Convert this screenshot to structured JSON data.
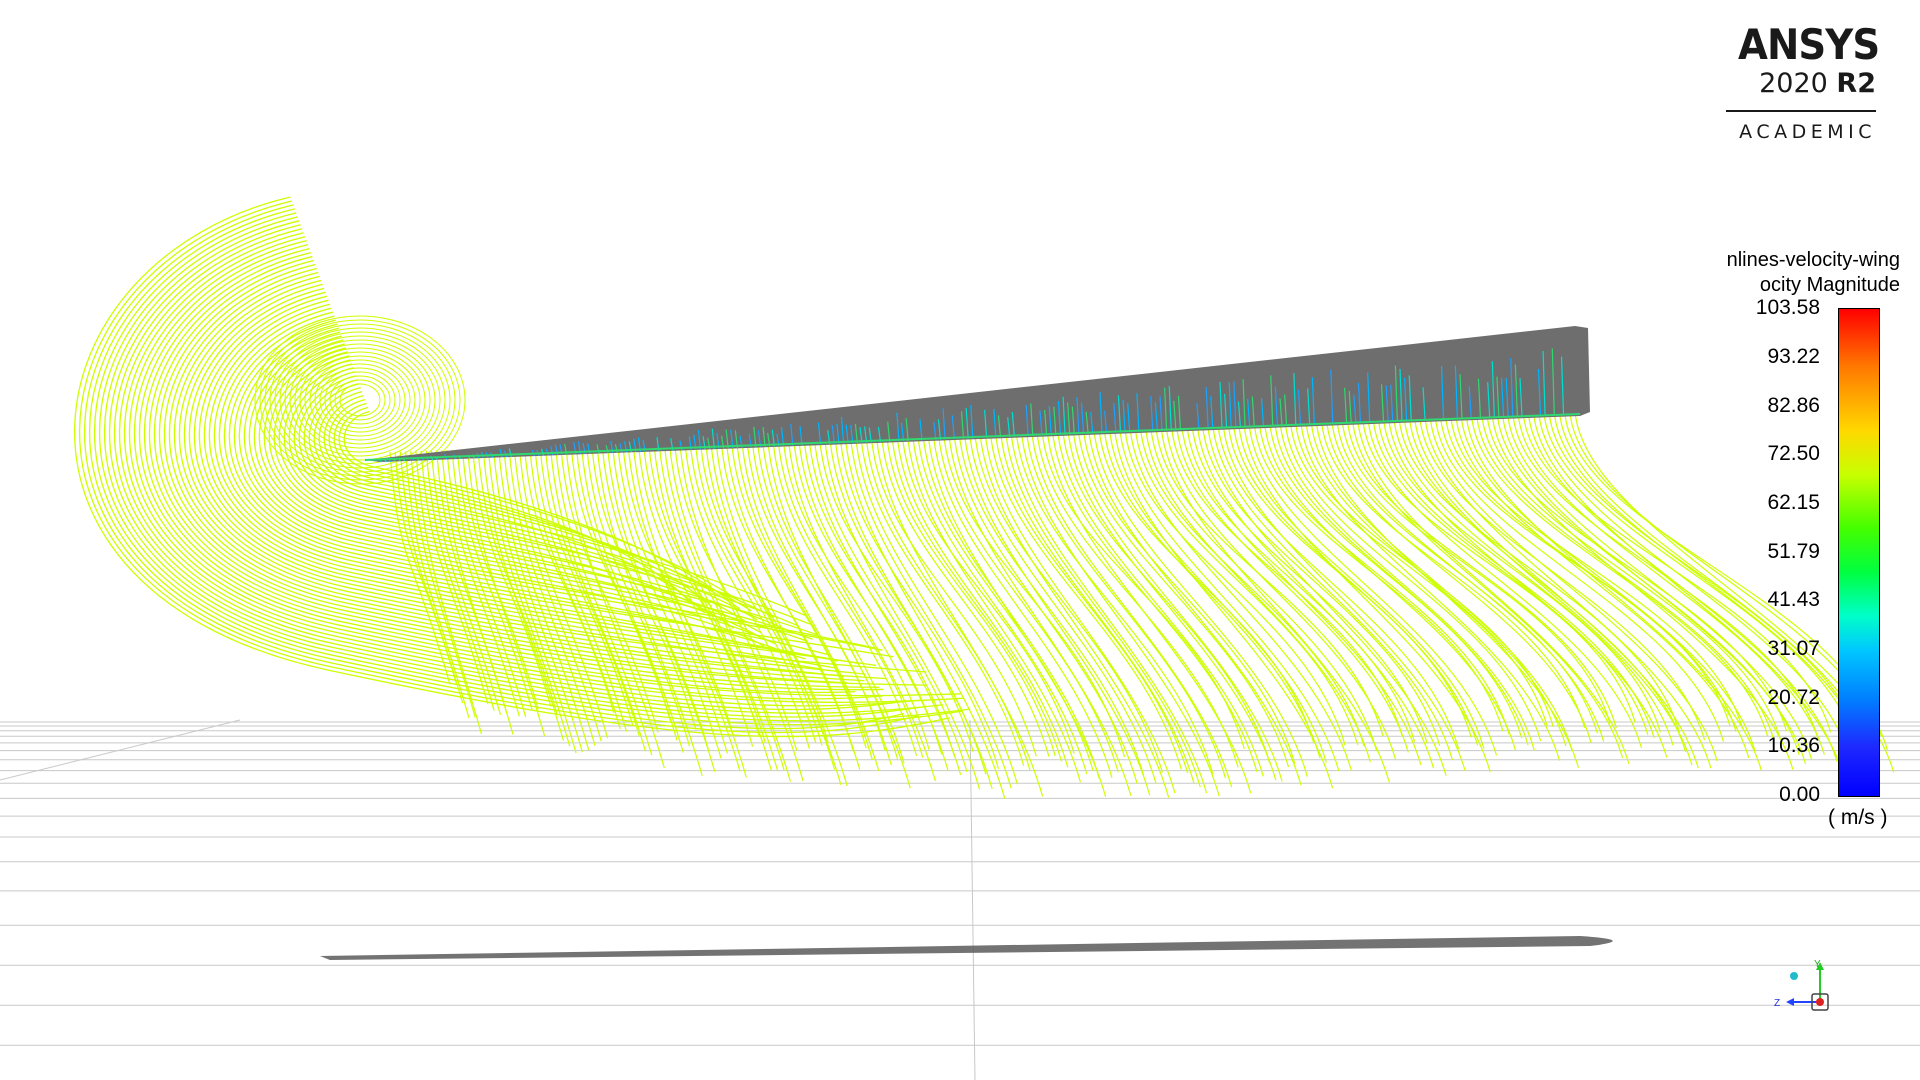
{
  "logo": {
    "brand": "ANSYS",
    "version_year": "2020",
    "version_release": "R2",
    "edition": "ACADEMIC"
  },
  "legend": {
    "title_line1": "nlines-velocity-wing",
    "title_line2": "ocity Magnitude",
    "labels": [
      "103.58",
      "93.22",
      "82.86",
      "72.50",
      "62.15",
      "51.79",
      "41.43",
      "31.07",
      "20.72",
      "10.36",
      "0.00"
    ],
    "unit": "( m/s )",
    "colormap": [
      "#ff0000",
      "#ff7a00",
      "#ffd800",
      "#c8ff00",
      "#44ff00",
      "#00ff40",
      "#00ffc8",
      "#00c8ff",
      "#0080ff",
      "#1e28ff",
      "#0000ff"
    ]
  },
  "scene": {
    "streamline_color": "#ccff00",
    "wing_color": "#6e6e6e",
    "surface_line_colors": [
      "#00b4ff",
      "#1ea0ff",
      "#00e0d0",
      "#30d870"
    ],
    "grid_color": "#c8c8c8"
  },
  "triad": {
    "axis_y": "Y",
    "axis_z": "Z"
  }
}
